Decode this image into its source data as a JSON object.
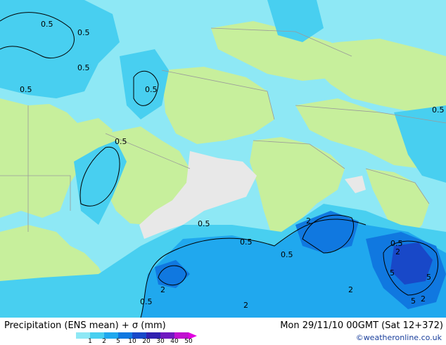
{
  "header": {
    "product_title": "Precipitation (ENS mean) + σ (mm)",
    "valid_time": "Mon 29/11/10 00GMT  (Sat 12+372)",
    "credit": "©weatheronline.co.uk"
  },
  "legend": {
    "levels": [
      "1",
      "2",
      "5",
      "10",
      "20",
      "30",
      "40",
      "50"
    ],
    "colors": [
      "#8ee8f5",
      "#48cff0",
      "#20a8ee",
      "#1078e0",
      "#1848c8",
      "#3020b0",
      "#7018c0",
      "#c010d0",
      "#e000e0"
    ]
  },
  "map": {
    "colors": {
      "land": "#c7ef9c",
      "border": "#9a9a9a",
      "dry": "#e8e8e8",
      "ocean_light": "#a6eff8",
      "level_1": "#8ee8f5",
      "level_2": "#48cff0",
      "level_5": "#20a8ee",
      "level_10": "#1078e0",
      "level_20": "#1848c8"
    },
    "contour_labels": [
      {
        "text": "0.5"
      },
      {
        "text": "0.5"
      },
      {
        "text": "0.5"
      },
      {
        "text": "0.5"
      },
      {
        "text": "0.5"
      },
      {
        "text": "0.5"
      },
      {
        "text": "0.5"
      },
      {
        "text": "0.5"
      },
      {
        "text": "0.5"
      },
      {
        "text": "0.5"
      },
      {
        "text": "0.5"
      },
      {
        "text": "0.5"
      },
      {
        "text": "2"
      },
      {
        "text": "2"
      },
      {
        "text": "2"
      },
      {
        "text": "2"
      },
      {
        "text": "2"
      },
      {
        "text": "2"
      },
      {
        "text": "5"
      },
      {
        "text": "5"
      },
      {
        "text": "5"
      }
    ]
  }
}
